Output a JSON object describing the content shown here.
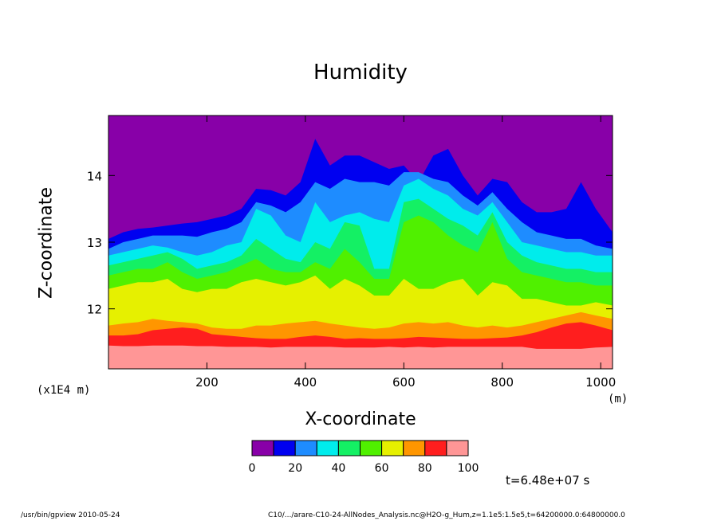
{
  "chart_data": {
    "type": "heatmap",
    "title": "Humidity",
    "xlabel": "X-coordinate",
    "ylabel": "Z-coordinate",
    "x_unit": "(m)",
    "y_exponent_label": "(x1E4 m)",
    "xlim": [
      0,
      1024
    ],
    "ylim": [
      11.1,
      14.9
    ],
    "x_ticks": [
      200,
      400,
      600,
      800,
      1000
    ],
    "y_ticks": [
      12,
      13,
      14
    ],
    "colorbar": {
      "levels": [
        0,
        10,
        20,
        30,
        40,
        50,
        60,
        70,
        80,
        90,
        100
      ],
      "tick_labels": [
        "0",
        "20",
        "40",
        "60",
        "80",
        "100"
      ],
      "colors": [
        "#8800a8",
        "#0000f0",
        "#1e8cff",
        "#00ecec",
        "#14f064",
        "#50f000",
        "#e6f000",
        "#ff9600",
        "#ff1e1e",
        "#ff9696"
      ]
    },
    "contour_boundaries": {
      "x": [
        0,
        30,
        60,
        90,
        120,
        150,
        180,
        210,
        240,
        270,
        300,
        330,
        360,
        390,
        420,
        450,
        480,
        510,
        540,
        570,
        600,
        630,
        660,
        690,
        720,
        750,
        780,
        810,
        840,
        870,
        900,
        930,
        960,
        990,
        1024
      ],
      "level_10": [
        13.05,
        13.15,
        13.2,
        13.22,
        13.25,
        13.28,
        13.3,
        13.35,
        13.4,
        13.5,
        13.8,
        13.78,
        13.7,
        13.9,
        14.55,
        14.15,
        14.3,
        14.3,
        14.2,
        14.1,
        14.15,
        13.9,
        14.3,
        14.4,
        14.0,
        13.7,
        13.95,
        13.9,
        13.6,
        13.45,
        13.45,
        13.5,
        13.9,
        13.5,
        13.15
      ],
      "level_20": [
        12.9,
        13.0,
        13.05,
        13.1,
        13.1,
        13.1,
        13.08,
        13.15,
        13.2,
        13.3,
        13.6,
        13.55,
        13.45,
        13.6,
        13.9,
        13.8,
        13.95,
        13.9,
        13.9,
        13.85,
        14.05,
        14.05,
        13.95,
        13.9,
        13.7,
        13.55,
        13.75,
        13.5,
        13.3,
        13.15,
        13.1,
        13.05,
        13.05,
        12.95,
        12.9
      ],
      "level_30": [
        12.8,
        12.85,
        12.9,
        12.95,
        12.92,
        12.85,
        12.8,
        12.85,
        12.95,
        13.0,
        13.5,
        13.4,
        13.1,
        13.0,
        13.6,
        13.3,
        13.4,
        13.45,
        13.35,
        13.3,
        13.85,
        13.95,
        13.8,
        13.7,
        13.5,
        13.4,
        13.6,
        13.3,
        13.0,
        12.95,
        12.9,
        12.85,
        12.85,
        12.8,
        12.8
      ],
      "level_40": [
        12.65,
        12.7,
        12.75,
        12.8,
        12.85,
        12.75,
        12.6,
        12.65,
        12.7,
        12.8,
        13.05,
        12.9,
        12.75,
        12.7,
        13.0,
        12.9,
        13.3,
        13.25,
        12.6,
        12.6,
        13.6,
        13.65,
        13.5,
        13.35,
        13.25,
        13.1,
        13.45,
        13.0,
        12.8,
        12.7,
        12.65,
        12.6,
        12.6,
        12.55,
        12.55
      ],
      "level_50": [
        12.5,
        12.55,
        12.6,
        12.6,
        12.7,
        12.55,
        12.45,
        12.5,
        12.55,
        12.65,
        12.75,
        12.6,
        12.55,
        12.55,
        12.7,
        12.6,
        12.9,
        12.7,
        12.45,
        12.45,
        13.3,
        13.4,
        13.3,
        13.1,
        12.95,
        12.85,
        13.3,
        12.75,
        12.55,
        12.5,
        12.45,
        12.4,
        12.4,
        12.35,
        12.35
      ],
      "level_60": [
        12.3,
        12.35,
        12.4,
        12.4,
        12.45,
        12.3,
        12.25,
        12.3,
        12.3,
        12.4,
        12.45,
        12.4,
        12.35,
        12.4,
        12.5,
        12.3,
        12.45,
        12.35,
        12.2,
        12.2,
        12.45,
        12.3,
        12.3,
        12.4,
        12.45,
        12.2,
        12.4,
        12.35,
        12.15,
        12.15,
        12.1,
        12.05,
        12.05,
        12.1,
        12.05
      ],
      "level_70": [
        11.75,
        11.78,
        11.8,
        11.85,
        11.82,
        11.8,
        11.78,
        11.72,
        11.7,
        11.7,
        11.75,
        11.75,
        11.78,
        11.8,
        11.82,
        11.78,
        11.75,
        11.72,
        11.7,
        11.72,
        11.78,
        11.8,
        11.78,
        11.8,
        11.75,
        11.72,
        11.75,
        11.72,
        11.75,
        11.8,
        11.85,
        11.9,
        11.95,
        11.9,
        11.85
      ],
      "level_80": [
        11.6,
        11.6,
        11.62,
        11.68,
        11.7,
        11.72,
        11.7,
        11.62,
        11.6,
        11.58,
        11.56,
        11.55,
        11.55,
        11.58,
        11.6,
        11.58,
        11.55,
        11.56,
        11.55,
        11.55,
        11.56,
        11.58,
        11.57,
        11.56,
        11.55,
        11.55,
        11.56,
        11.57,
        11.6,
        11.65,
        11.72,
        11.78,
        11.8,
        11.75,
        11.68
      ],
      "level_90": [
        11.45,
        11.44,
        11.44,
        11.45,
        11.45,
        11.45,
        11.44,
        11.44,
        11.43,
        11.43,
        11.43,
        11.42,
        11.43,
        11.43,
        11.43,
        11.43,
        11.42,
        11.42,
        11.42,
        11.43,
        11.42,
        11.43,
        11.42,
        11.43,
        11.43,
        11.43,
        11.43,
        11.43,
        11.43,
        11.4,
        11.4,
        11.4,
        11.4,
        11.42,
        11.43
      ]
    },
    "time_label": "t=6.48e+07 s"
  },
  "footer": {
    "left": "/usr/bin/gpview  2010-05-24",
    "right": "C10/.../arare-C10-24-AllNodes_Analysis.nc@H2O-g_Hum,z=1.1e5:1.5e5,t=64200000.0:64800000.0"
  }
}
